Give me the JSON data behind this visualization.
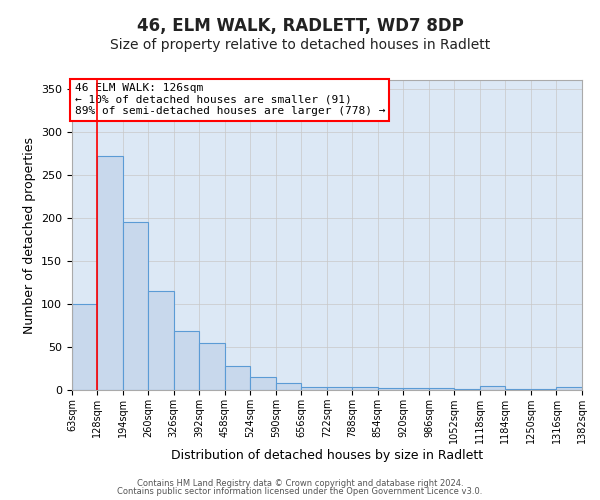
{
  "title": "46, ELM WALK, RADLETT, WD7 8DP",
  "subtitle": "Size of property relative to detached houses in Radlett",
  "xlabel": "Distribution of detached houses by size in Radlett",
  "ylabel": "Number of detached properties",
  "bar_color": "#c8d8ec",
  "bar_edge_color": "#5b9bd5",
  "background_color": "#dce8f5",
  "fig_background": "#ffffff",
  "bin_edges": [
    63,
    128,
    194,
    260,
    326,
    392,
    458,
    524,
    590,
    656,
    722,
    788,
    854,
    920,
    986,
    1052,
    1118,
    1184,
    1250,
    1316,
    1382
  ],
  "bin_labels": [
    "63sqm",
    "128sqm",
    "194sqm",
    "260sqm",
    "326sqm",
    "392sqm",
    "458sqm",
    "524sqm",
    "590sqm",
    "656sqm",
    "722sqm",
    "788sqm",
    "854sqm",
    "920sqm",
    "986sqm",
    "1052sqm",
    "1118sqm",
    "1184sqm",
    "1250sqm",
    "1316sqm",
    "1382sqm"
  ],
  "bar_heights": [
    100,
    272,
    195,
    115,
    68,
    55,
    28,
    15,
    8,
    3,
    4,
    3,
    2,
    2,
    2,
    1,
    5,
    1,
    1,
    4
  ],
  "property_line_x": 128,
  "ylim": [
    0,
    360
  ],
  "yticks": [
    0,
    50,
    100,
    150,
    200,
    250,
    300,
    350
  ],
  "annotation_title": "46 ELM WALK: 126sqm",
  "annotation_line1": "← 10% of detached houses are smaller (91)",
  "annotation_line2": "89% of semi-detached houses are larger (778) →",
  "footer_line1": "Contains HM Land Registry data © Crown copyright and database right 2024.",
  "footer_line2": "Contains public sector information licensed under the Open Government Licence v3.0.",
  "grid_color": "#c8c8c8",
  "title_fontsize": 12,
  "subtitle_fontsize": 10,
  "tick_label_fontsize": 7,
  "axis_label_fontsize": 9,
  "annotation_fontsize": 8,
  "footer_fontsize": 6
}
